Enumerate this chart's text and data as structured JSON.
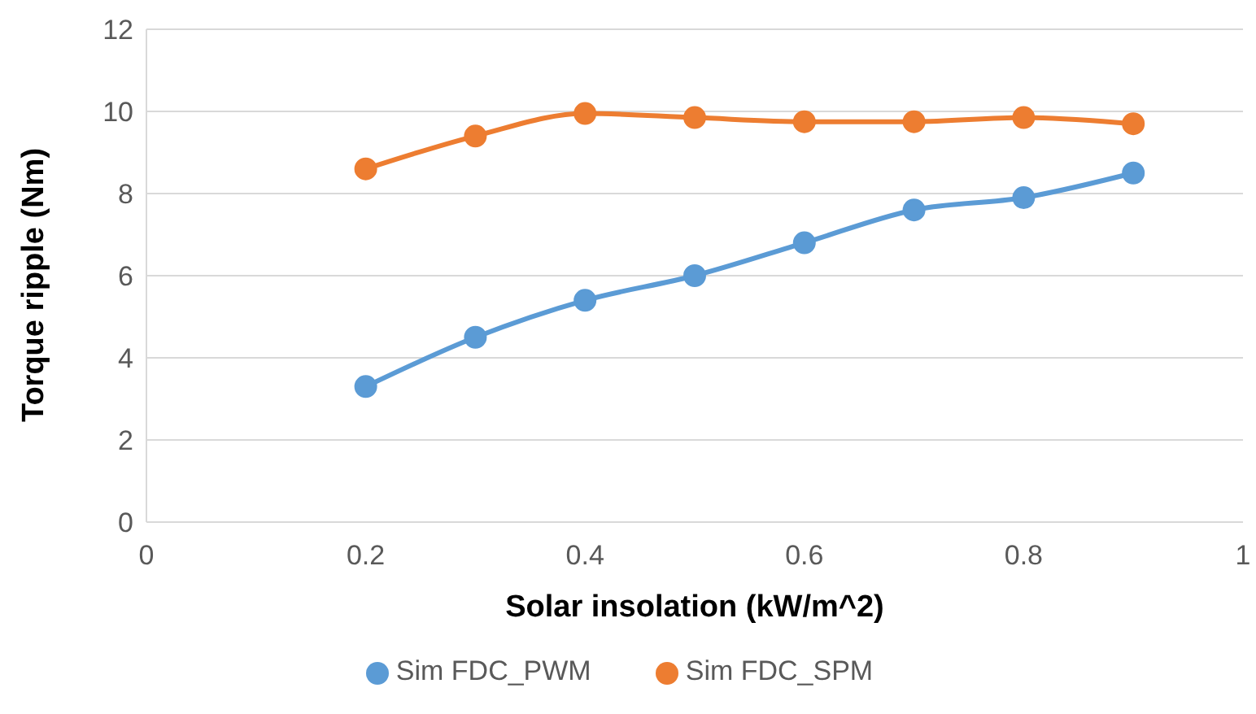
{
  "chart_data": {
    "type": "line",
    "xlabel": "Solar insolation (kW/m^2)",
    "ylabel": "Torque ripple (Nm)",
    "x": [
      0.2,
      0.3,
      0.4,
      0.5,
      0.6,
      0.7,
      0.8,
      0.9
    ],
    "series": [
      {
        "name": "Sim FDC_PWM",
        "color": "#5b9bd5",
        "values": [
          3.3,
          4.5,
          5.4,
          6.0,
          6.8,
          7.6,
          7.9,
          8.5
        ]
      },
      {
        "name": "Sim FDC_SPM",
        "color": "#ed7d31",
        "values": [
          8.6,
          9.4,
          9.95,
          9.85,
          9.75,
          9.75,
          9.85,
          9.7
        ]
      }
    ],
    "xlim": [
      0,
      1
    ],
    "xticks": [
      0,
      0.2,
      0.4,
      0.6,
      0.8,
      1
    ],
    "ylim": [
      0,
      12
    ],
    "yticks": [
      0,
      2,
      4,
      6,
      8,
      10,
      12
    ],
    "grid": "y",
    "legend": "bottom",
    "marker": "circle",
    "line_style": "solid"
  }
}
